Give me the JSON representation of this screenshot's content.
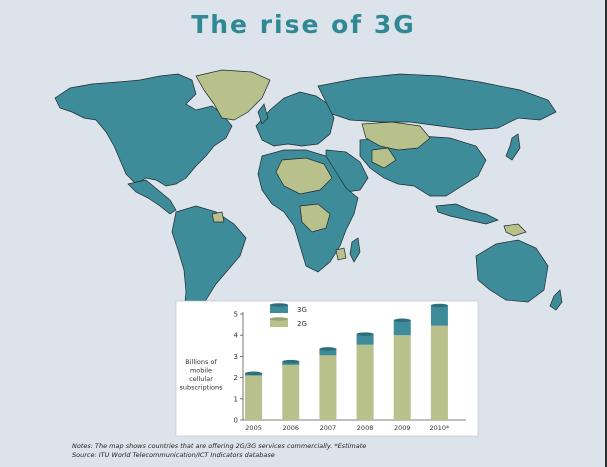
{
  "title": "The rise of 3G",
  "map_legend_colors": {
    "3g_countries": "#3e8c9a",
    "2g_countries": "#b8c08b"
  },
  "chart_data": {
    "type": "bar",
    "stacked": true,
    "categories": [
      "2005",
      "2006",
      "2007",
      "2008",
      "2009",
      "2010*"
    ],
    "series": [
      {
        "name": "2G",
        "values": [
          2.1,
          2.6,
          3.05,
          3.55,
          4.0,
          4.45
        ],
        "color": "#b8c08b"
      },
      {
        "name": "3G",
        "values": [
          0.1,
          0.15,
          0.3,
          0.5,
          0.7,
          0.95
        ],
        "color": "#3e8c9a"
      }
    ],
    "ylabel": "Billions of mobile cellular subscriptions",
    "ylim": [
      0,
      5
    ],
    "yticks": [
      "0",
      "1",
      "2",
      "3",
      "4",
      "5"
    ],
    "grid": false,
    "legend_position": "top-left"
  },
  "notes": {
    "line1": "Notes:  The map shows countries that are offering 2G/3G services commercially.  *Estimate",
    "line2": "Source:  ITU World Telecommunication/ICT Indicators database"
  }
}
